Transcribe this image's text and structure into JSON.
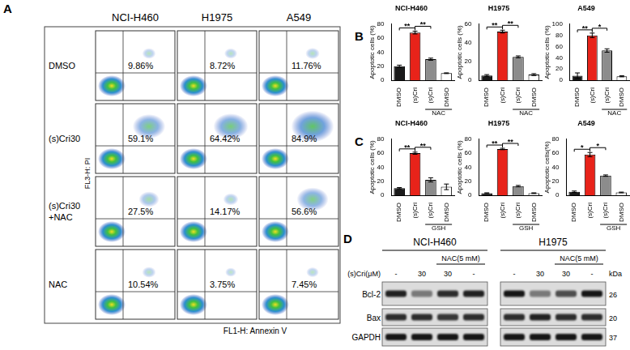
{
  "panel_labels": [
    "A",
    "B",
    "C",
    "D"
  ],
  "flow_panel": {
    "x_label": "FL1-H: Annexin V",
    "y_label": "FL3-H: PI",
    "columns": [
      "NCI-H460",
      "H1975",
      "A549"
    ],
    "rows": [
      [
        "DMSO"
      ],
      [
        "(s)Cri30"
      ],
      [
        "(s)Cri30",
        "+NAC"
      ],
      [
        "NAC"
      ]
    ],
    "values": [
      [
        9.86,
        8.72,
        11.76
      ],
      [
        59.1,
        64.42,
        84.9
      ],
      [
        27.5,
        14.17,
        56.6
      ],
      [
        10.54,
        3.75,
        7.45
      ]
    ],
    "value_labels": [
      [
        "9.86%",
        "8.72%",
        "11.76%"
      ],
      [
        "59.1%",
        "64.42%",
        "84.9%"
      ],
      [
        "27.5%",
        "14.17%",
        "56.6%"
      ],
      [
        "10.54%",
        "3.75%",
        "7.45%"
      ]
    ]
  },
  "chart_data": [
    {
      "type": "bar",
      "title": "NCI-H460",
      "y_label": "Apoptotic cells (%)",
      "categories": [
        "DMSO",
        "(s)Cri",
        "(s)Cri",
        "DMSO"
      ],
      "group_label": "NAC",
      "values": [
        20,
        68,
        30,
        10
      ],
      "errors": [
        1.5,
        2,
        1.5,
        0.5
      ],
      "colors": [
        "#1a1a1a",
        "#e8231a",
        "#8c8c8c",
        "#ffffff"
      ],
      "ylim": [
        0,
        80
      ],
      "yticks": [
        0,
        20,
        40,
        60,
        80
      ],
      "grid": false,
      "significance": [
        {
          "bars": [
            0,
            1
          ],
          "label": "**"
        },
        {
          "bars": [
            1,
            2
          ],
          "label": "**"
        }
      ]
    },
    {
      "type": "bar",
      "title": "H1975",
      "y_label": "Apoptotic cells (%)",
      "categories": [
        "DMSO",
        "(s)Cri",
        "(s)Cri",
        "DMSO"
      ],
      "group_label": "NAC",
      "values": [
        5,
        52,
        25,
        6
      ],
      "errors": [
        1,
        1.5,
        1,
        1
      ],
      "colors": [
        "#1a1a1a",
        "#e8231a",
        "#8c8c8c",
        "#ffffff"
      ],
      "ylim": [
        0,
        60
      ],
      "yticks": [
        0,
        20,
        40,
        60
      ],
      "grid": false,
      "significance": [
        {
          "bars": [
            0,
            1
          ],
          "label": "**"
        },
        {
          "bars": [
            1,
            2
          ],
          "label": "**"
        }
      ]
    },
    {
      "type": "bar",
      "title": "A549",
      "y_label": "Apoptotic cells (%)",
      "categories": [
        "DMSO",
        "(s)Cri",
        "(s)Cri",
        "DMSO"
      ],
      "group_label": "NAC",
      "values": [
        8,
        80,
        53,
        7
      ],
      "errors": [
        5,
        4,
        3,
        1
      ],
      "colors": [
        "#1a1a1a",
        "#e8231a",
        "#8c8c8c",
        "#ffffff"
      ],
      "ylim": [
        0,
        100
      ],
      "yticks": [
        0,
        20,
        40,
        60,
        80,
        100
      ],
      "grid": false,
      "significance": [
        {
          "bars": [
            0,
            1
          ],
          "label": "**"
        },
        {
          "bars": [
            1,
            2
          ],
          "label": "*"
        }
      ]
    },
    {
      "type": "bar",
      "title": "NCI-H460",
      "y_label": "Apoptotic cells (%)",
      "categories": [
        "DMSO",
        "(s)Cri",
        "(s)Cri",
        "DMSO"
      ],
      "group_label": "GSH",
      "values": [
        10,
        60,
        22,
        12
      ],
      "errors": [
        1,
        1.5,
        3,
        4
      ],
      "colors": [
        "#1a1a1a",
        "#e8231a",
        "#8c8c8c",
        "#ffffff"
      ],
      "ylim": [
        0,
        80
      ],
      "yticks": [
        0,
        20,
        40,
        60,
        80
      ],
      "grid": false,
      "significance": [
        {
          "bars": [
            0,
            1
          ],
          "label": "**"
        },
        {
          "bars": [
            1,
            2
          ],
          "label": "**"
        }
      ]
    },
    {
      "type": "bar",
      "title": "H1975",
      "y_label": "Apoptotic cells (%)",
      "categories": [
        "DMSO",
        "(s)Cri",
        "(s)Cri",
        "DMSO"
      ],
      "group_label": "GSH",
      "values": [
        3,
        66,
        13,
        3
      ],
      "errors": [
        0.5,
        1,
        1,
        0.5
      ],
      "colors": [
        "#1a1a1a",
        "#e8231a",
        "#8c8c8c",
        "#ffffff"
      ],
      "ylim": [
        0,
        80
      ],
      "yticks": [
        0,
        20,
        40,
        60,
        80
      ],
      "grid": false,
      "significance": [
        {
          "bars": [
            0,
            1
          ],
          "label": "**"
        },
        {
          "bars": [
            1,
            2
          ],
          "label": "**"
        }
      ]
    },
    {
      "type": "bar",
      "title": "A549",
      "y_label": "Apoptotic cells(%)",
      "categories": [
        "DMSO",
        "(s)Cri",
        "(s)Cri",
        "DMSO"
      ],
      "group_label": "GSH",
      "values": [
        5,
        58,
        28,
        4
      ],
      "errors": [
        1,
        3,
        1,
        0.5
      ],
      "colors": [
        "#1a1a1a",
        "#e8231a",
        "#8c8c8c",
        "#ffffff"
      ],
      "ylim": [
        0,
        80
      ],
      "yticks": [
        0,
        20,
        40,
        60,
        80
      ],
      "grid": false,
      "significance": [
        {
          "bars": [
            0,
            1
          ],
          "label": "*"
        },
        {
          "bars": [
            1,
            2
          ],
          "label": "*"
        }
      ]
    }
  ],
  "blot_panel": {
    "cell_lines": [
      "NCI-H460",
      "H1975"
    ],
    "treatment_label": "NAC(5 mM)",
    "dose_label": "(s)Cri(μM)",
    "doses": [
      "-",
      30,
      30,
      "-"
    ],
    "unit_label": "kDa",
    "bands": [
      {
        "name": "Bcl-2",
        "kda": 26,
        "intensity": [
          [
            0.85,
            0.45,
            0.8,
            0.85
          ],
          [
            0.9,
            0.45,
            0.65,
            0.9
          ]
        ]
      },
      {
        "name": "Bax",
        "kda": 20,
        "intensity": [
          [
            0.8,
            0.8,
            0.75,
            0.8
          ],
          [
            0.8,
            0.85,
            0.8,
            0.8
          ]
        ]
      },
      {
        "name": "GAPDH",
        "kda": 37,
        "intensity": [
          [
            0.9,
            0.9,
            0.9,
            0.9
          ],
          [
            0.9,
            0.9,
            0.9,
            0.9
          ]
        ]
      }
    ]
  }
}
